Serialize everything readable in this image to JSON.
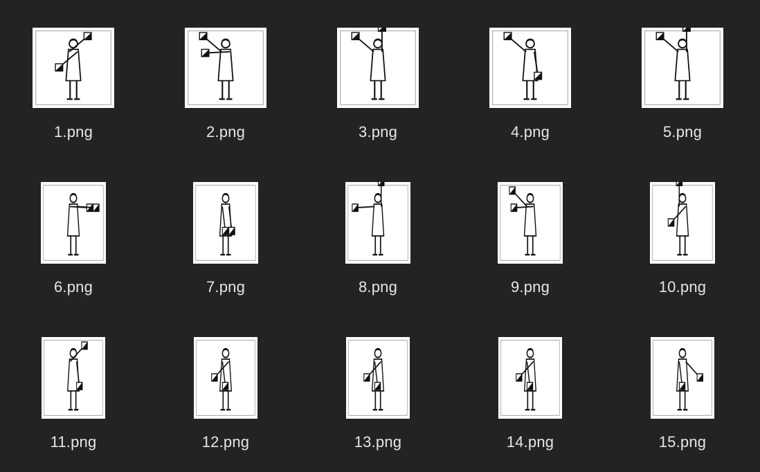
{
  "files": [
    {
      "name": "1.png",
      "pose": "ur-ll",
      "icon": "semaphore-image-icon"
    },
    {
      "name": "2.png",
      "pose": "ul-l",
      "icon": "semaphore-image-icon"
    },
    {
      "name": "3.png",
      "pose": "ul-up",
      "icon": "semaphore-image-icon"
    },
    {
      "name": "4.png",
      "pose": "ul-down",
      "icon": "semaphore-image-icon"
    },
    {
      "name": "5.png",
      "pose": "ul-up",
      "icon": "semaphore-image-icon"
    },
    {
      "name": "6.png",
      "pose": "r-r",
      "icon": "semaphore-image-icon"
    },
    {
      "name": "7.png",
      "pose": "down-down",
      "icon": "semaphore-image-icon"
    },
    {
      "name": "8.png",
      "pose": "l-up",
      "icon": "semaphore-image-icon"
    },
    {
      "name": "9.png",
      "pose": "ul-l",
      "icon": "semaphore-image-icon"
    },
    {
      "name": "10.png",
      "pose": "up-ll",
      "icon": "semaphore-image-icon"
    },
    {
      "name": "11.png",
      "pose": "ur-down",
      "icon": "semaphore-image-icon"
    },
    {
      "name": "12.png",
      "pose": "down-ll",
      "icon": "semaphore-image-icon"
    },
    {
      "name": "13.png",
      "pose": "down-ll",
      "icon": "semaphore-image-icon"
    },
    {
      "name": "14.png",
      "pose": "down-ll",
      "icon": "semaphore-image-icon"
    },
    {
      "name": "15.png",
      "pose": "down-lr",
      "icon": "semaphore-image-icon"
    }
  ]
}
